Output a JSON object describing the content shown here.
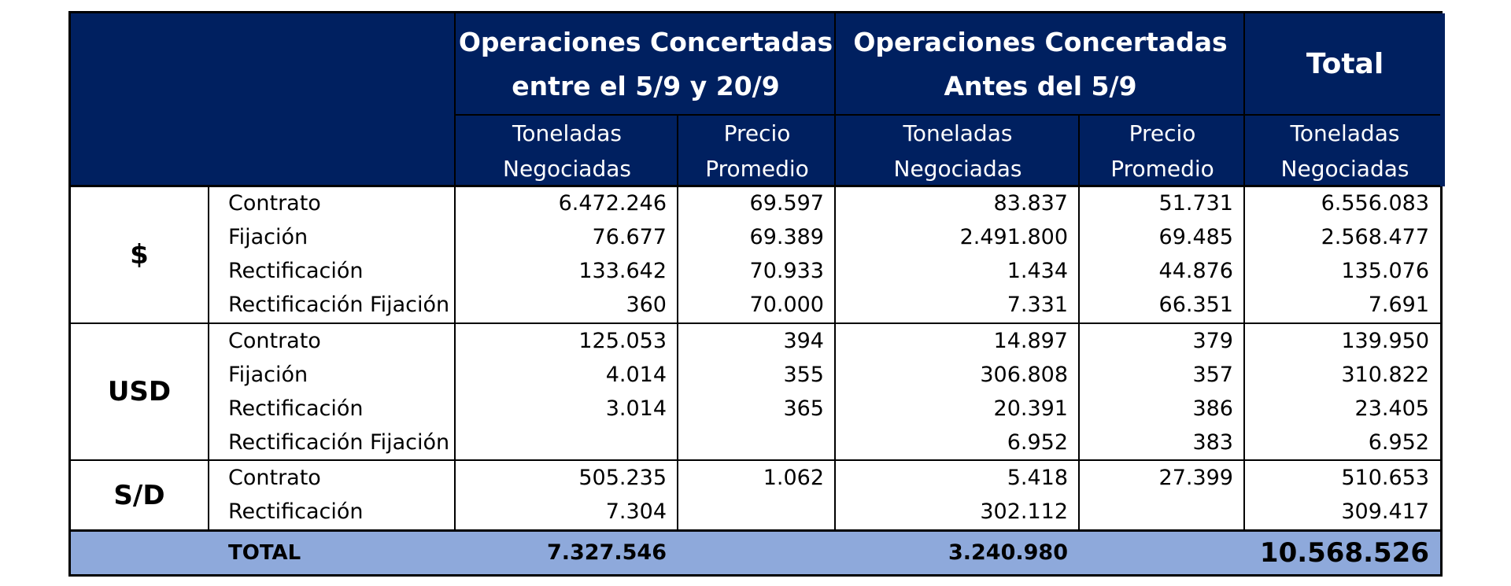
{
  "header": {
    "group1": "Operaciones Concertadas\nentre el 5/9 y 20/9",
    "group2": "Operaciones Concertadas\nAntes del 5/9",
    "group3": "Total",
    "sub_tons": "Toneladas\nNegociadas",
    "sub_price": "Precio\nPromedio"
  },
  "sections": [
    {
      "currency": "$",
      "rows": [
        {
          "label": "Contrato",
          "t1": "6.472.246",
          "p1": "69.597",
          "t2": "83.837",
          "p2": "51.731",
          "tt": "6.556.083"
        },
        {
          "label": "Fijación",
          "t1": "76.677",
          "p1": "69.389",
          "t2": "2.491.800",
          "p2": "69.485",
          "tt": "2.568.477"
        },
        {
          "label": "Rectificación",
          "t1": "133.642",
          "p1": "70.933",
          "t2": "1.434",
          "p2": "44.876",
          "tt": "135.076"
        },
        {
          "label": "Rectificación Fijación",
          "t1": "360",
          "p1": "70.000",
          "t2": "7.331",
          "p2": "66.351",
          "tt": "7.691"
        }
      ]
    },
    {
      "currency": "USD",
      "rows": [
        {
          "label": "Contrato",
          "t1": "125.053",
          "p1": "394",
          "t2": "14.897",
          "p2": "379",
          "tt": "139.950"
        },
        {
          "label": "Fijación",
          "t1": "4.014",
          "p1": "355",
          "t2": "306.808",
          "p2": "357",
          "tt": "310.822"
        },
        {
          "label": "Rectificación",
          "t1": "3.014",
          "p1": "365",
          "t2": "20.391",
          "p2": "386",
          "tt": "23.405"
        },
        {
          "label": "Rectificación Fijación",
          "t1": "",
          "p1": "",
          "t2": "6.952",
          "p2": "383",
          "tt": "6.952"
        }
      ]
    },
    {
      "currency": "S/D",
      "rows": [
        {
          "label": "Contrato",
          "t1": "505.235",
          "p1": "1.062",
          "t2": "5.418",
          "p2": "27.399",
          "tt": "510.653"
        },
        {
          "label": "Rectificación",
          "t1": "7.304",
          "p1": "",
          "t2": "302.112",
          "p2": "",
          "tt": "309.417"
        }
      ]
    }
  ],
  "total": {
    "label": "TOTAL",
    "t1": "7.327.546",
    "t2": "3.240.980",
    "tt": "10.568.526"
  },
  "colors": {
    "header_bg": "#002060",
    "header_text": "#FFFFFF",
    "total_bg": "#8EA9DB"
  }
}
